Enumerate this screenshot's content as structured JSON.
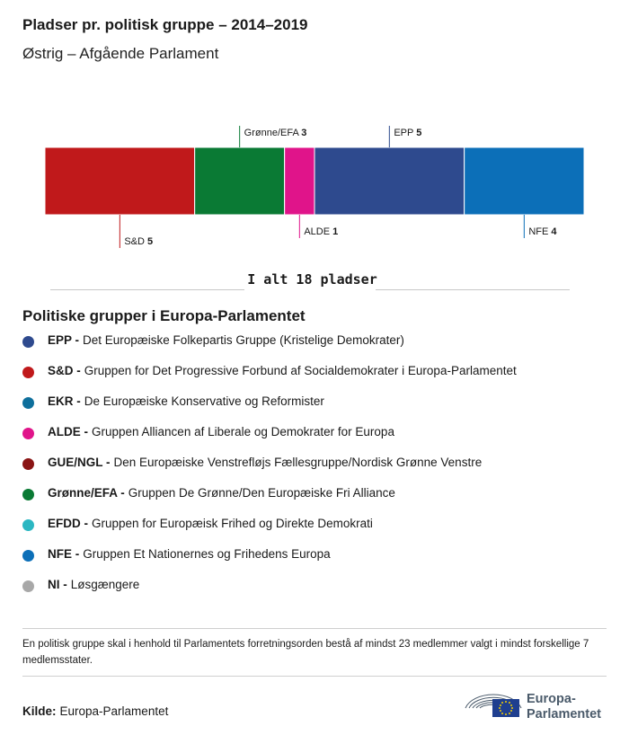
{
  "title": "Pladser pr. politisk gruppe – 2014–2019",
  "subtitle": "Østrig – Afgående Parlament",
  "chart_data": {
    "type": "bar",
    "orientation": "horizontal-stacked",
    "segments": [
      {
        "name": "S&D",
        "value": 5,
        "color": "#c0191b",
        "label_position": "below"
      },
      {
        "name": "Grønne/EFA",
        "value": 3,
        "color": "#0a7a34",
        "label_position": "above"
      },
      {
        "name": "ALDE",
        "value": 1,
        "color": "#e0148a",
        "label_position": "below"
      },
      {
        "name": "EPP",
        "value": 5,
        "color": "#2e4a8e",
        "label_position": "above"
      },
      {
        "name": "NFE",
        "value": 4,
        "color": "#0c6fb8",
        "label_position": "below"
      }
    ],
    "total": 18,
    "total_label": "I alt 18 pladser"
  },
  "legend": {
    "title": "Politiske grupper i Europa-Parlamentet",
    "items": [
      {
        "abbr": "EPP -",
        "text": "Det Europæiske Folkepartis Gruppe (Kristelige Demokrater)",
        "color": "#2e4a8e"
      },
      {
        "abbr": "S&D -",
        "text": "Gruppen for Det Progressive Forbund af Socialdemokrater i Europa-Parlamentet",
        "color": "#c0191b"
      },
      {
        "abbr": "EKR -",
        "text": "De Europæiske Konservative og Reformister",
        "color": "#0e6f9c"
      },
      {
        "abbr": "ALDE -",
        "text": "Gruppen Alliancen af Liberale og Demokrater for Europa",
        "color": "#e0148a"
      },
      {
        "abbr": "GUE/NGL -",
        "text": "Den Europæiske Venstrefløjs Fællesgruppe/Nordisk Grønne Venstre",
        "color": "#8a1414"
      },
      {
        "abbr": "Grønne/EFA -",
        "text": "Gruppen De Grønne/Den Europæiske Fri Alliance",
        "color": "#0a7a34"
      },
      {
        "abbr": "EFDD -",
        "text": "Gruppen for Europæisk Frihed og Direkte Demokrati",
        "color": "#2bb7c2"
      },
      {
        "abbr": "NFE -",
        "text": "Gruppen Et Nationernes og Frihedens Europa",
        "color": "#0c6fb8"
      },
      {
        "abbr": "NI -",
        "text": "Løsgængere",
        "color": "#a8a8a8"
      }
    ]
  },
  "note": "En politisk gruppe skal i henhold til Parlamentets forretningsorden bestå af mindst 23 medlemmer valgt i mindst forskellige 7 medlemsstater.",
  "source": {
    "label": "Kilde:",
    "value": "Europa-Parlamentet"
  },
  "logo": {
    "line1": "Europa-",
    "line2": "Parlamentet"
  }
}
